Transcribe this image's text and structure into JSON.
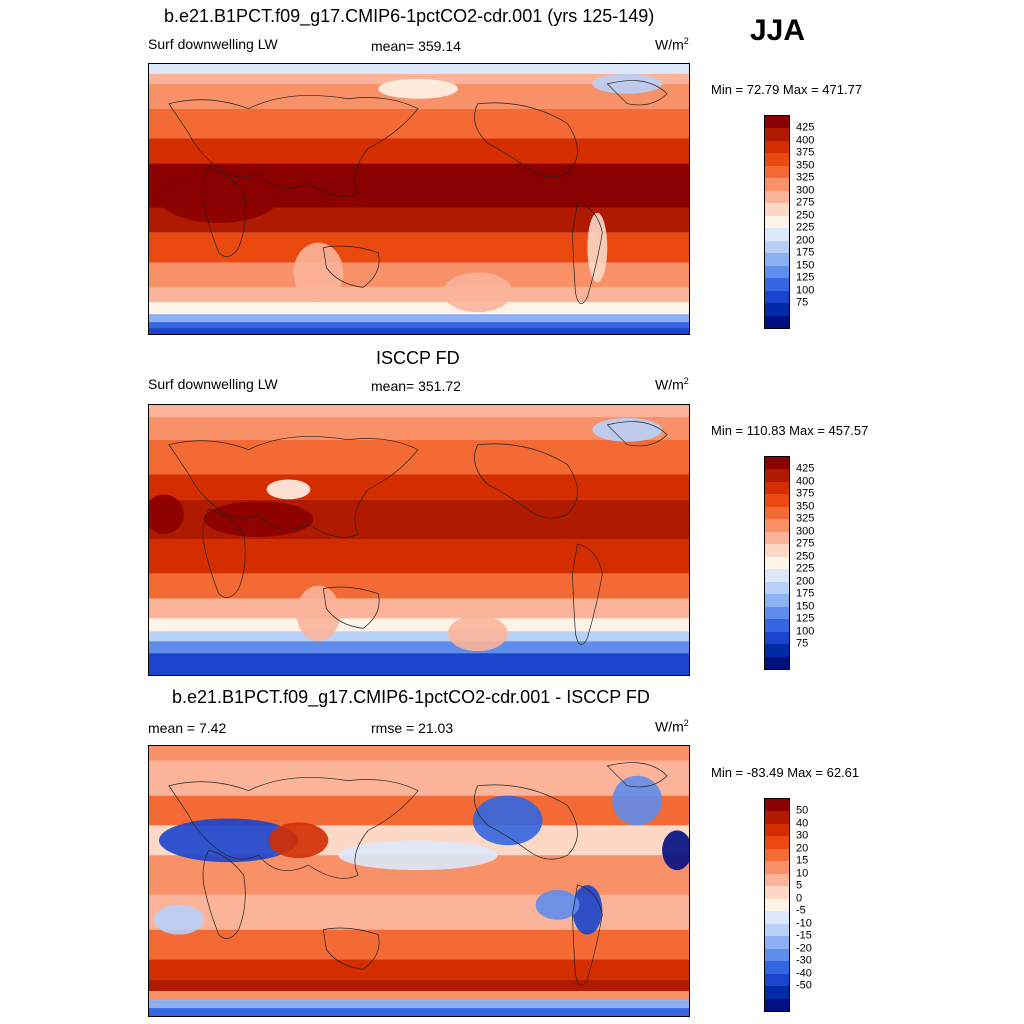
{
  "season": "JJA",
  "panels": [
    {
      "title": "b.e21.B1PCT.f09_g17.CMIP6-1pctCO2-cdr.001 (yrs 125-149)",
      "left_label": "Surf downwelling LW",
      "center_label": "mean= 359.14",
      "units": "W/m",
      "units_exp": "2",
      "minmax": "Min =  72.79 Max = 471.77",
      "kind": "abs"
    },
    {
      "title": "ISCCP FD",
      "left_label": "Surf downwelling LW",
      "center_label": "mean= 351.72",
      "units": "W/m",
      "units_exp": "2",
      "minmax": "Min = 110.83 Max = 457.57",
      "kind": "abs2"
    },
    {
      "title": "b.e21.B1PCT.f09_g17.CMIP6-1pctCO2-cdr.001 - ISCCP FD",
      "left_label": "mean =   7.42",
      "center_label": "rmse =  21.03",
      "units": "W/m",
      "units_exp": "2",
      "minmax": "Min = -83.49 Max =  62.61",
      "kind": "diff"
    }
  ],
  "colorbar_abs": {
    "labels": [
      "425",
      "400",
      "375",
      "350",
      "325",
      "300",
      "275",
      "250",
      "225",
      "200",
      "175",
      "150",
      "125",
      "100",
      "75"
    ],
    "colors": [
      "#8b0000",
      "#b01a00",
      "#d42e00",
      "#ea4a10",
      "#f46a35",
      "#f89068",
      "#fbb49a",
      "#fdd8c6",
      "#fff3e8",
      "#dde8fb",
      "#b8cff7",
      "#8db0f2",
      "#5f8deb",
      "#3366e0",
      "#1a44cc",
      "#002aa8",
      "#001080"
    ]
  },
  "colorbar_diff": {
    "labels": [
      "50",
      "40",
      "30",
      "20",
      "15",
      "10",
      "5",
      "0",
      "-5",
      "-10",
      "-15",
      "-20",
      "-30",
      "-40",
      "-50"
    ],
    "colors": [
      "#8b0000",
      "#b01a00",
      "#d42e00",
      "#ea4a10",
      "#f46a35",
      "#f89068",
      "#fbb49a",
      "#fdd8c6",
      "#fff3e8",
      "#dde8fb",
      "#b8cff7",
      "#8db0f2",
      "#5f8deb",
      "#3366e0",
      "#1a44cc",
      "#002aa8",
      "#001080"
    ]
  },
  "chart_data": [
    {
      "type": "heatmap",
      "title": "b.e21.B1PCT.f09_g17.CMIP6-1pctCO2-cdr.001 (yrs 125-149)",
      "variable": "Surf downwelling LW",
      "units": "W/m2",
      "mean": 359.14,
      "min": 72.79,
      "max": 471.77,
      "levels": [
        75,
        100,
        125,
        150,
        175,
        200,
        225,
        250,
        275,
        300,
        325,
        350,
        375,
        400,
        425
      ]
    },
    {
      "type": "heatmap",
      "title": "ISCCP FD",
      "variable": "Surf downwelling LW",
      "units": "W/m2",
      "mean": 351.72,
      "min": 110.83,
      "max": 457.57,
      "levels": [
        75,
        100,
        125,
        150,
        175,
        200,
        225,
        250,
        275,
        300,
        325,
        350,
        375,
        400,
        425
      ]
    },
    {
      "type": "heatmap",
      "title": "b.e21.B1PCT.f09_g17.CMIP6-1pctCO2-cdr.001 - ISCCP FD",
      "units": "W/m2",
      "mean": 7.42,
      "rmse": 21.03,
      "min": -83.49,
      "max": 62.61,
      "levels": [
        -50,
        -40,
        -30,
        -20,
        -15,
        -10,
        -5,
        0,
        5,
        10,
        15,
        20,
        30,
        40,
        50
      ]
    }
  ]
}
